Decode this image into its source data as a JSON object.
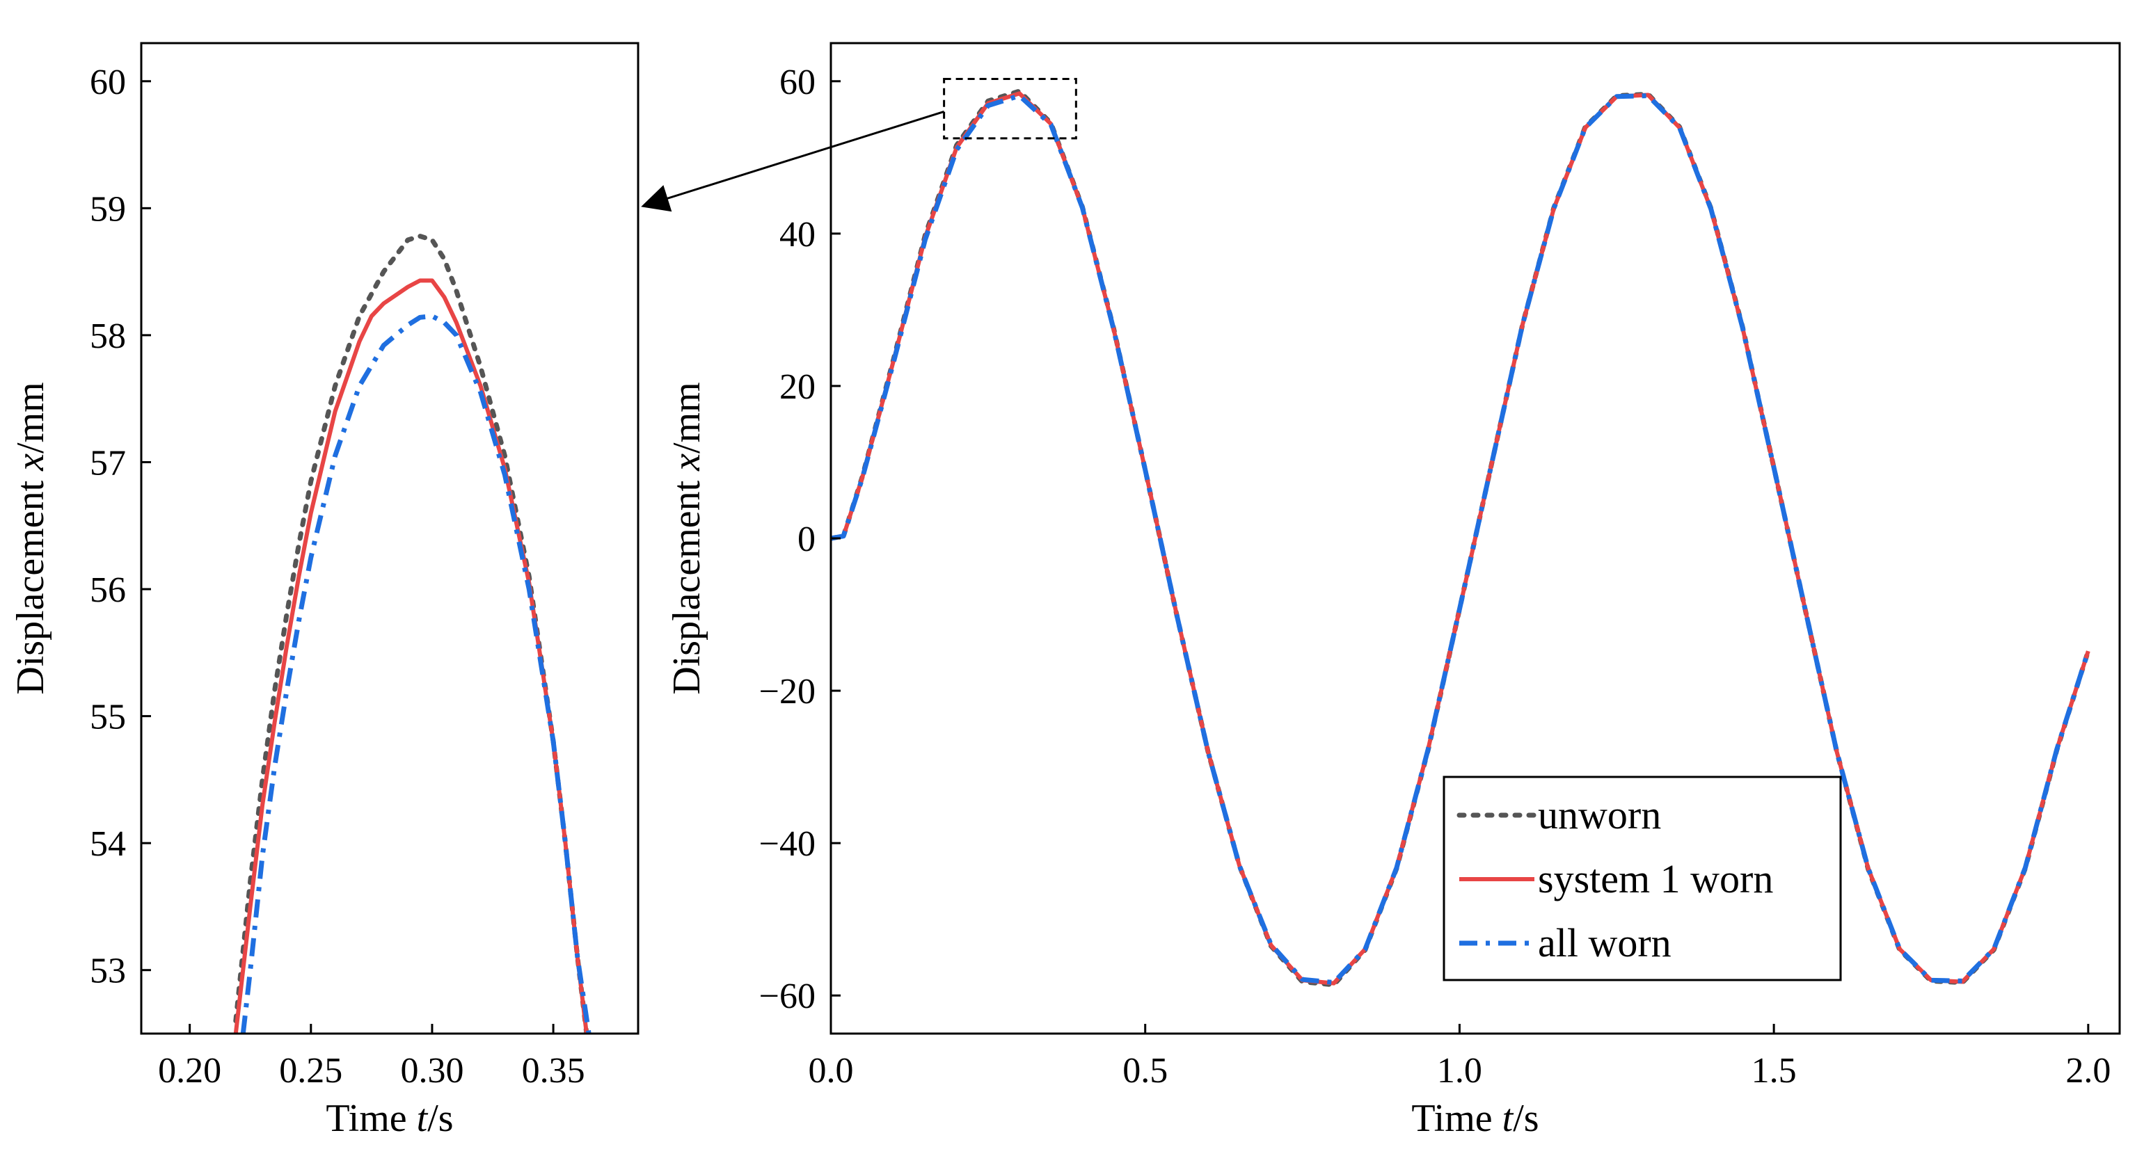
{
  "colors": {
    "unworn": "#555555",
    "system1": "#e84545",
    "all": "#1f6fe0",
    "axis": "#000000"
  },
  "legend": {
    "entries": [
      {
        "key": "unworn",
        "label": "unworn"
      },
      {
        "key": "system1",
        "label": "system 1 worn"
      },
      {
        "key": "all",
        "label": "all worn"
      }
    ]
  },
  "chart_data": [
    {
      "id": "zoom",
      "type": "line",
      "title": "",
      "xlabel_prefix": "Time ",
      "xlabel_var": "t",
      "xlabel_unit": "/s",
      "ylabel_prefix": "Displacement ",
      "ylabel_var": "x",
      "ylabel_unit": "/mm",
      "xlim": [
        0.18,
        0.385
      ],
      "ylim": [
        52.5,
        60.3
      ],
      "xticks": [
        0.2,
        0.25,
        0.3,
        0.35
      ],
      "xtick_labels": [
        "0.20",
        "0.25",
        "0.30",
        "0.35"
      ],
      "yticks": [
        53,
        54,
        55,
        56,
        57,
        58,
        59,
        60
      ],
      "ytick_labels": [
        "53",
        "54",
        "55",
        "56",
        "57",
        "58",
        "59",
        "60"
      ],
      "grid": false,
      "series": [
        {
          "key": "unworn",
          "name": "unworn",
          "x": [
            0.219,
            0.225,
            0.23,
            0.235,
            0.24,
            0.245,
            0.25,
            0.26,
            0.27,
            0.28,
            0.29,
            0.295,
            0.3,
            0.305,
            0.31,
            0.315,
            0.32,
            0.33,
            0.34,
            0.35,
            0.355,
            0.36,
            0.365
          ],
          "y": [
            52.6,
            53.7,
            54.5,
            55.2,
            55.8,
            56.35,
            56.85,
            57.6,
            58.15,
            58.5,
            58.75,
            58.78,
            58.75,
            58.6,
            58.35,
            58.05,
            57.75,
            57.05,
            56.1,
            54.8,
            54.0,
            53.1,
            52.3
          ]
        },
        {
          "key": "system1",
          "name": "system 1 worn",
          "x": [
            0.219,
            0.225,
            0.23,
            0.235,
            0.24,
            0.245,
            0.25,
            0.26,
            0.27,
            0.275,
            0.28,
            0.29,
            0.295,
            0.3,
            0.305,
            0.31,
            0.315,
            0.32,
            0.33,
            0.34,
            0.35,
            0.355,
            0.36,
            0.365
          ],
          "y": [
            52.5,
            53.5,
            54.3,
            54.95,
            55.55,
            56.1,
            56.6,
            57.4,
            57.95,
            58.15,
            58.25,
            58.38,
            58.43,
            58.43,
            58.3,
            58.1,
            57.85,
            57.6,
            56.95,
            56.05,
            54.8,
            54.0,
            53.1,
            52.3
          ]
        },
        {
          "key": "all",
          "name": "all worn",
          "x": [
            0.222,
            0.225,
            0.23,
            0.235,
            0.24,
            0.245,
            0.25,
            0.26,
            0.27,
            0.28,
            0.29,
            0.295,
            0.3,
            0.305,
            0.31,
            0.32,
            0.33,
            0.34,
            0.35,
            0.355,
            0.36,
            0.367
          ],
          "y": [
            52.5,
            53.0,
            53.9,
            54.6,
            55.2,
            55.75,
            56.25,
            57.05,
            57.6,
            57.92,
            58.08,
            58.14,
            58.15,
            58.1,
            58.0,
            57.55,
            56.9,
            56.0,
            54.8,
            54.0,
            53.1,
            52.2
          ]
        }
      ]
    },
    {
      "id": "main",
      "type": "line",
      "title": "",
      "xlabel_prefix": "Time ",
      "xlabel_var": "t",
      "xlabel_unit": "/s",
      "ylabel_prefix": "Displacement ",
      "ylabel_var": "x",
      "ylabel_unit": "/mm",
      "xlim": [
        0.0,
        2.05
      ],
      "ylim": [
        -65,
        65
      ],
      "xticks": [
        0.0,
        0.5,
        1.0,
        1.5,
        2.0
      ],
      "xtick_labels": [
        "0.0",
        "0.5",
        "1.0",
        "1.5",
        "2.0"
      ],
      "yticks": [
        -60,
        -40,
        -20,
        0,
        20,
        40,
        60
      ],
      "ytick_labels": [
        "−60",
        "−40",
        "−20",
        "0",
        "20",
        "40",
        "60"
      ],
      "grid": false,
      "legend_position": "lower-right",
      "zoom_box": {
        "x": [
          0.18,
          0.39
        ],
        "y": [
          52.5,
          60.3
        ]
      },
      "series": [
        {
          "key": "unworn",
          "name": "unworn",
          "x": [
            0.0,
            0.02,
            0.05,
            0.1,
            0.15,
            0.2,
            0.25,
            0.3,
            0.35,
            0.4,
            0.45,
            0.5,
            0.55,
            0.6,
            0.65,
            0.7,
            0.75,
            0.8,
            0.85,
            0.9,
            0.95,
            1.0,
            1.05,
            1.1,
            1.15,
            1.2,
            1.25,
            1.3,
            1.35,
            1.4,
            1.45,
            1.5,
            1.55,
            1.6,
            1.65,
            1.7,
            1.75,
            1.8,
            1.85,
            1.9,
            1.95,
            2.0
          ],
          "y": [
            0.0,
            0.3,
            8.1,
            23.6,
            39.8,
            51.6,
            57.4,
            58.7,
            54.5,
            43.5,
            27.5,
            9.0,
            -10.0,
            -28.0,
            -43.0,
            -53.5,
            -58.2,
            -58.6,
            -54.0,
            -43.3,
            -27.8,
            -9.3,
            9.4,
            28.0,
            43.4,
            54.0,
            58.1,
            58.3,
            54.0,
            43.3,
            27.8,
            9.3,
            -9.4,
            -28.0,
            -43.4,
            -54.0,
            -58.1,
            -58.3,
            -54.0,
            -43.3,
            -27.8,
            -14.8
          ]
        },
        {
          "key": "system1",
          "name": "system 1 worn",
          "x": [
            0.0,
            0.02,
            0.05,
            0.1,
            0.15,
            0.2,
            0.25,
            0.3,
            0.35,
            0.4,
            0.45,
            0.5,
            0.55,
            0.6,
            0.65,
            0.7,
            0.75,
            0.8,
            0.85,
            0.9,
            0.95,
            1.0,
            1.05,
            1.1,
            1.15,
            1.2,
            1.25,
            1.3,
            1.35,
            1.4,
            1.45,
            1.5,
            1.55,
            1.6,
            1.65,
            1.7,
            1.75,
            1.8,
            1.85,
            1.9,
            1.95,
            2.0
          ],
          "y": [
            0.0,
            0.3,
            8.0,
            23.4,
            39.5,
            51.3,
            57.1,
            58.4,
            54.4,
            43.4,
            27.4,
            9.0,
            -10.0,
            -28.0,
            -43.0,
            -53.4,
            -58.0,
            -58.4,
            -53.9,
            -43.2,
            -27.7,
            -9.3,
            9.4,
            28.0,
            43.3,
            53.9,
            58.0,
            58.2,
            53.9,
            43.2,
            27.7,
            9.3,
            -9.4,
            -28.0,
            -43.3,
            -53.9,
            -58.0,
            -58.2,
            -53.9,
            -43.2,
            -27.7,
            -14.8
          ]
        },
        {
          "key": "all",
          "name": "all worn",
          "x": [
            0.0,
            0.02,
            0.05,
            0.1,
            0.15,
            0.2,
            0.25,
            0.3,
            0.35,
            0.4,
            0.45,
            0.5,
            0.55,
            0.6,
            0.65,
            0.7,
            0.75,
            0.8,
            0.85,
            0.9,
            0.95,
            1.0,
            1.05,
            1.1,
            1.15,
            1.2,
            1.25,
            1.3,
            1.35,
            1.4,
            1.45,
            1.5,
            1.55,
            1.6,
            1.65,
            1.7,
            1.75,
            1.8,
            1.85,
            1.9,
            1.95,
            2.0
          ],
          "y": [
            0.0,
            0.3,
            7.9,
            23.2,
            39.2,
            51.0,
            56.8,
            58.1,
            54.3,
            43.4,
            27.4,
            9.0,
            -10.0,
            -28.0,
            -43.0,
            -53.3,
            -57.9,
            -58.3,
            -53.9,
            -43.2,
            -27.7,
            -9.3,
            9.4,
            28.0,
            43.3,
            53.9,
            58.0,
            58.1,
            53.9,
            43.2,
            27.7,
            9.3,
            -9.4,
            -28.0,
            -43.3,
            -53.9,
            -58.0,
            -58.1,
            -53.9,
            -43.2,
            -27.7,
            -14.8
          ]
        }
      ]
    }
  ]
}
